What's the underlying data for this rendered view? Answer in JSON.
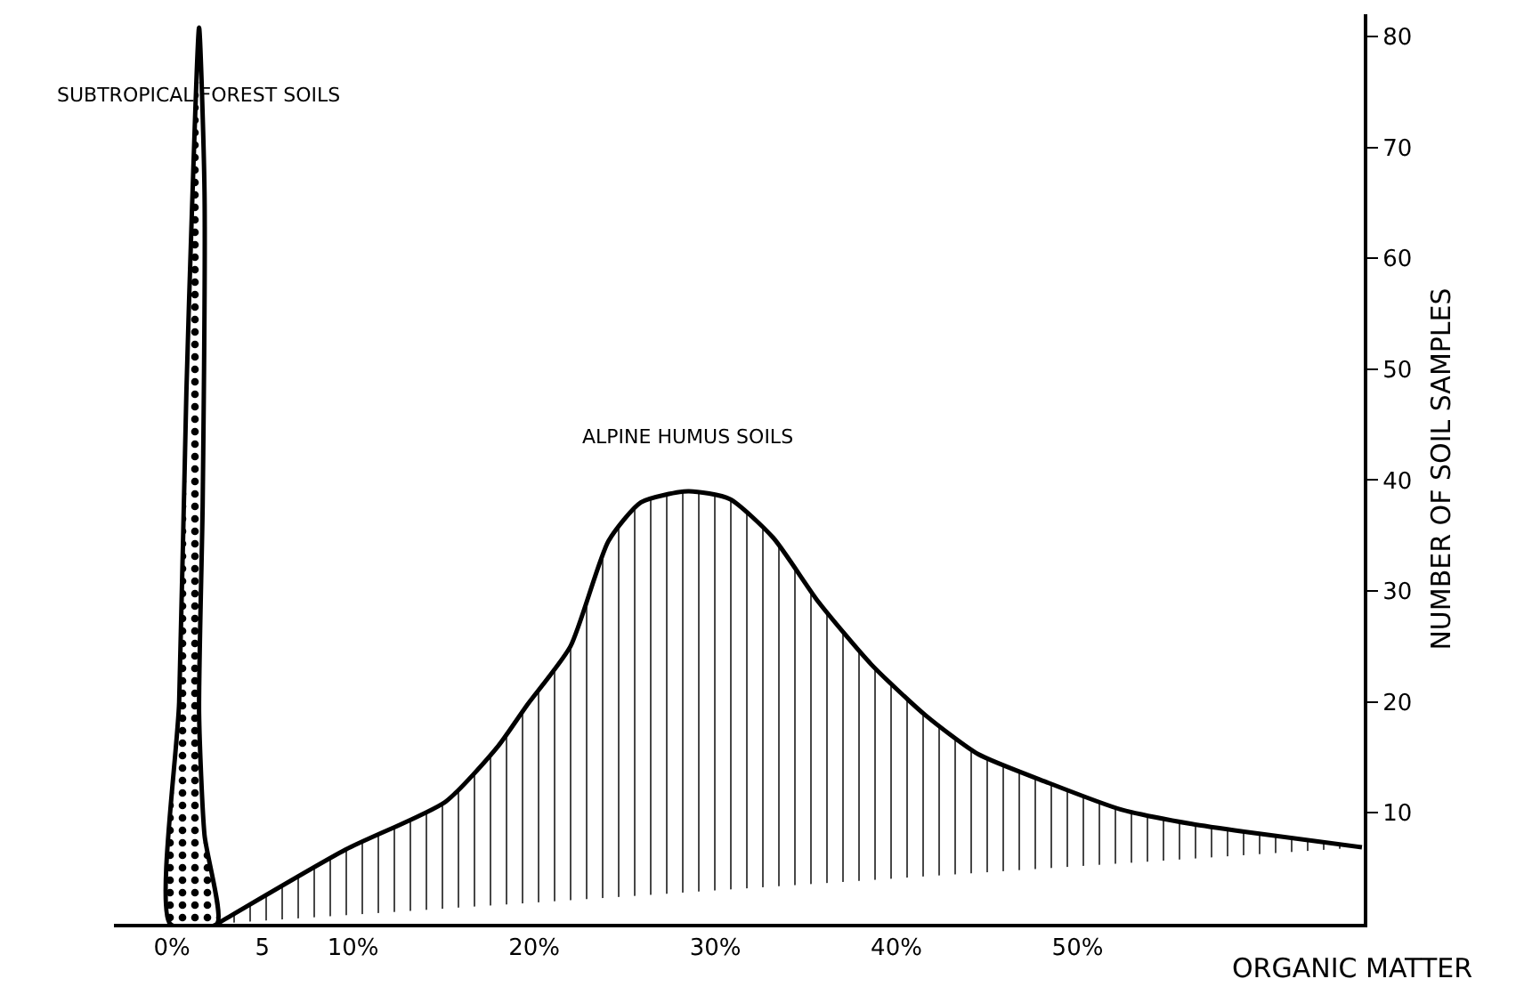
{
  "chart_data": {
    "type": "area",
    "xlabel": "ORGANIC MATTER",
    "ylabel": "NUMBER OF SOIL SAMPLES",
    "xlim": [
      -3.2,
      65.8
    ],
    "ylim": [
      0,
      82
    ],
    "xticks": [
      {
        "value": 0,
        "label": "0%"
      },
      5,
      {
        "value": 10,
        "label": "10%"
      },
      {
        "value": 20,
        "label": "20%"
      },
      {
        "value": 30,
        "label": "30%"
      },
      {
        "value": 40,
        "label": "40%"
      },
      {
        "value": 50,
        "label": "50%"
      }
    ],
    "yticks": [
      10,
      20,
      30,
      40,
      50,
      60,
      70,
      80
    ],
    "grid": false,
    "legend": false,
    "series": [
      {
        "name": "SUBTROPICAL FOREST SOILS",
        "color": "#000000",
        "x": [
          -0.1,
          0.4,
          0.8,
          1.1,
          1.5,
          1.8,
          1.7,
          1.5,
          1.8,
          2.5,
          -0.1
        ],
        "values": [
          0,
          20,
          48,
          64,
          80.8,
          66,
          38,
          19,
          8,
          0,
          0
        ]
      },
      {
        "name": "ALPINE HUMUS SOILS",
        "color": "#000000",
        "x": [
          2.5,
          9.6,
          15.1,
          18,
          19.6,
          22,
          24.1,
          25.9,
          28.5,
          30.8,
          33.2,
          35.7,
          38.6,
          41.6,
          44.5,
          48.4,
          52.4,
          56.3,
          59.2,
          65.7
        ],
        "values": [
          0,
          6.7,
          11,
          16,
          19.7,
          25,
          34.5,
          38,
          39,
          38.3,
          34.8,
          29,
          23.4,
          18.8,
          15.3,
          12.7,
          10.3,
          9,
          8.3,
          6.9
        ]
      }
    ]
  }
}
